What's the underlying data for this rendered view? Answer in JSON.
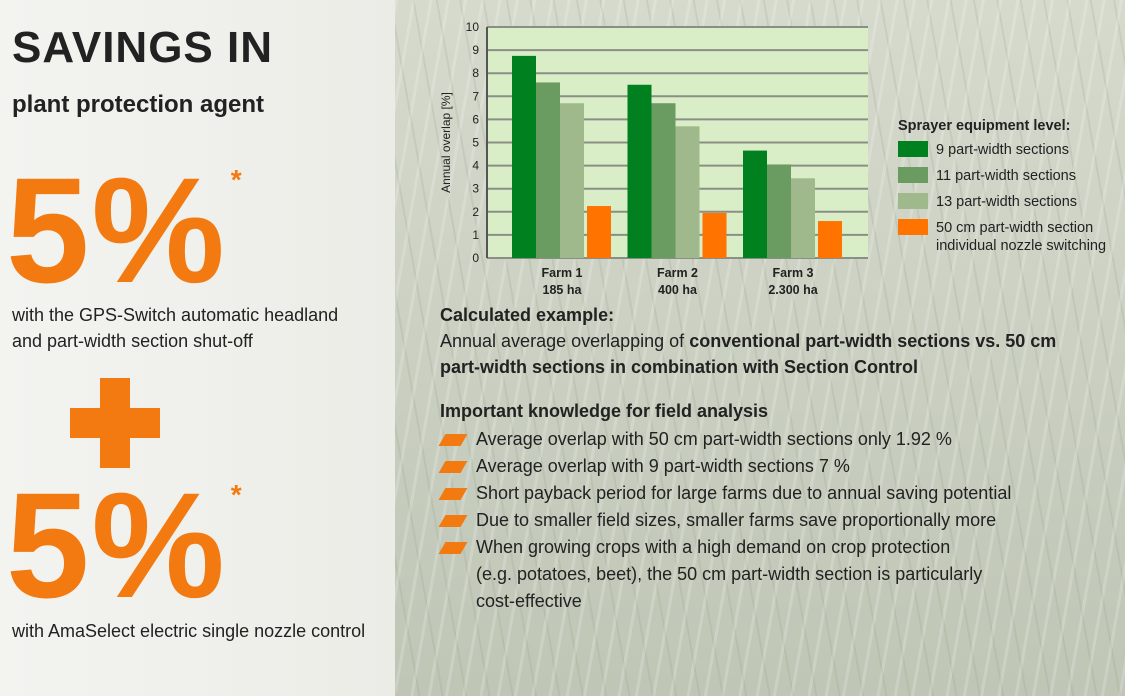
{
  "left": {
    "title": "SAVINGS IN",
    "subtitle": "plant protection agent",
    "value1": "5%",
    "asterisk": "*",
    "caption1a": "with the GPS-Switch automatic headland",
    "caption1b": "and part-width section shut-off",
    "value2": "5%",
    "caption2": "with AmaSelect electric single nozzle control"
  },
  "colors": {
    "accent": "#f37a10",
    "c9": "#00801f",
    "c11": "#6a9c62",
    "c13": "#9fb98c",
    "c50": "#ff7300",
    "plot_bg": "#d9edc7"
  },
  "chart_data": {
    "type": "bar",
    "ylabel": "Annual overlap [%]",
    "ylim": [
      0,
      10
    ],
    "yticks": [
      0,
      1,
      2,
      3,
      4,
      5,
      6,
      7,
      8,
      9,
      10
    ],
    "grid": true,
    "categories": [
      [
        "Farm 1",
        "185 ha"
      ],
      [
        "Farm 2",
        "400 ha"
      ],
      [
        "Farm 3",
        "2.300 ha"
      ]
    ],
    "legend_title": "Sprayer equipment level:",
    "legend_position": "right",
    "series": [
      {
        "name": "9 part-width sections",
        "values": [
          8.75,
          7.5,
          4.65
        ]
      },
      {
        "name": "11 part-width sections",
        "values": [
          7.6,
          6.7,
          4.05
        ]
      },
      {
        "name": "13 part-width sections",
        "values": [
          6.7,
          5.7,
          3.45
        ]
      },
      {
        "name": "50 cm part-width section",
        "name2": "individual nozzle switching",
        "values": [
          2.25,
          1.95,
          1.6
        ]
      }
    ]
  },
  "example": {
    "heading": "Calculated example:",
    "text_plain": "Annual average overlapping of ",
    "text_bold1": "conventional part-width sections vs. 50 cm",
    "text_bold2": "part-width sections in combination with Section Control"
  },
  "knowledge": {
    "heading": "Important knowledge for field analysis",
    "items": [
      "Average overlap with 50 cm part-width sections only 1.92 %",
      "Average overlap with 9 part-width sections 7 %",
      "Short payback period for large farms due to annual saving potential",
      "Due to smaller field sizes, smaller farms save proportionally more",
      "When growing crops with a high demand on crop protection",
      "(e.g. potatoes, beet), the 50 cm part-width section is particularly",
      "cost-effective"
    ]
  }
}
